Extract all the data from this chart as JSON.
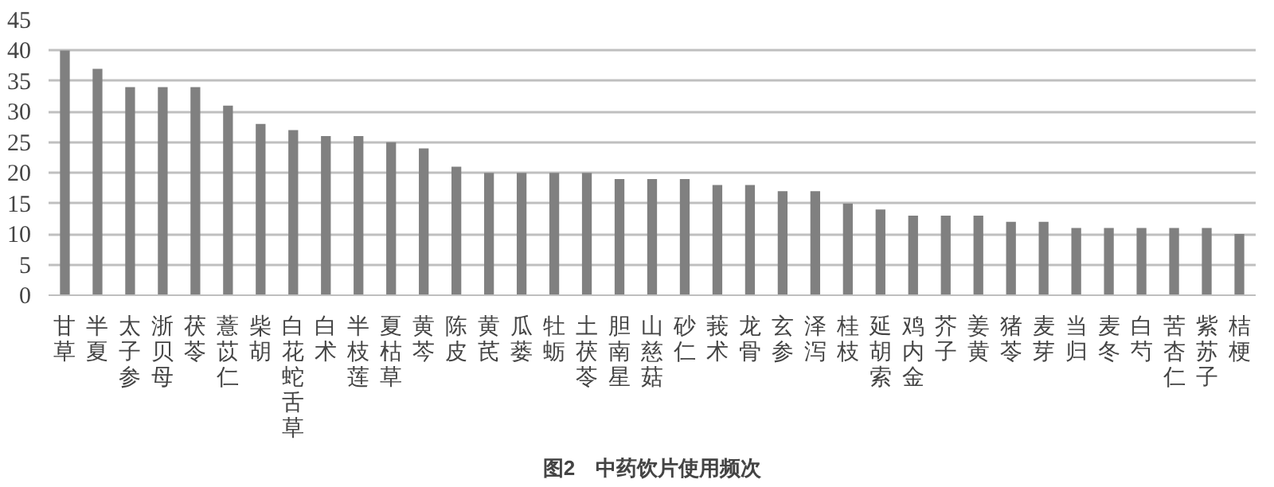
{
  "chart_data": {
    "type": "bar",
    "title": "图2　中药饮片使用频次",
    "categories": [
      "甘草",
      "半夏",
      "太子参",
      "浙贝母",
      "茯苓",
      "薏苡仁",
      "柴胡",
      "白花蛇舌草",
      "白术",
      "半枝莲",
      "夏枯草",
      "黄芩",
      "陈皮",
      "黄芪",
      "瓜蒌",
      "牡蛎",
      "土茯苓",
      "胆南星",
      "山慈菇",
      "砂仁",
      "莪术",
      "龙骨",
      "玄参",
      "泽泻",
      "桂枝",
      "延胡索",
      "鸡内金",
      "芥子",
      "姜黄",
      "猪苓",
      "麦芽",
      "当归",
      "麦冬",
      "白芍",
      "苦杏仁",
      "紫苏子",
      "桔梗"
    ],
    "values": [
      40,
      37,
      34,
      34,
      34,
      31,
      28,
      27,
      26,
      26,
      25,
      24,
      21,
      20,
      20,
      20,
      20,
      19,
      19,
      19,
      18,
      18,
      17,
      17,
      15,
      14,
      13,
      13,
      13,
      12,
      12,
      11,
      11,
      11,
      11,
      11,
      10
    ],
    "color": "#808080",
    "ylim": [
      0,
      45
    ],
    "yticks": [
      0,
      5,
      10,
      15,
      20,
      25,
      30,
      35,
      40,
      45
    ],
    "grid": "y"
  }
}
